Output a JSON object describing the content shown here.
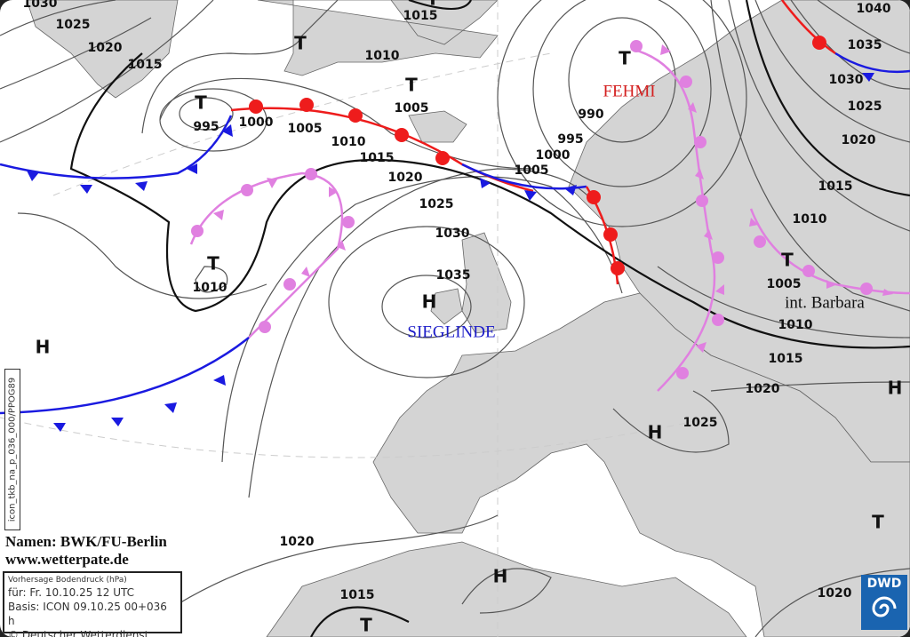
{
  "map": {
    "isobar_labels": [
      "1030",
      "1025",
      "1020",
      "1015",
      "1010",
      "1015",
      "1005",
      "995",
      "1000",
      "1005",
      "1010",
      "1015",
      "1020",
      "1025",
      "1030",
      "1035",
      "1010",
      "1005",
      "1000",
      "995",
      "990",
      "1040",
      "1035",
      "1030",
      "1025",
      "1020",
      "1015",
      "1010",
      "1005",
      "1010",
      "1015",
      "1020",
      "1025",
      "1020",
      "1015",
      "1020"
    ],
    "pressure_symbols": [
      "T",
      "T",
      "T",
      "T",
      "T",
      "T",
      "T",
      "T",
      "H",
      "H",
      "H",
      "H",
      "H"
    ],
    "system_names": [
      {
        "name": "FEHMI",
        "color": "#d42020"
      },
      {
        "name": "SIEGLINDE",
        "color": "#1c1cc8"
      },
      {
        "name": "int. Barbara",
        "color": "#111111"
      }
    ],
    "colors": {
      "land": "#d4d4d4",
      "sea": "#ffffff",
      "warm_front": "#ee1c1c",
      "cold_front": "#1a1ae0",
      "occlusion": "#e080e0",
      "isobar": "#555555"
    }
  },
  "credits": {
    "line1": "Namen: BWK/FU-Berlin",
    "line2": "www.wetterpate.de"
  },
  "infobox": {
    "title": "Vorhersage Bodendruck (hPa)",
    "valid": "für:  Fr. 10.10.25  12 UTC",
    "basis": "Basis: ICON  09.10.25 00+036 h",
    "copyright": "© Deutscher Wetterdienst"
  },
  "product_id": "icon_tkb_na_p_036_000/PPOG89",
  "logo": {
    "text": "DWD"
  }
}
